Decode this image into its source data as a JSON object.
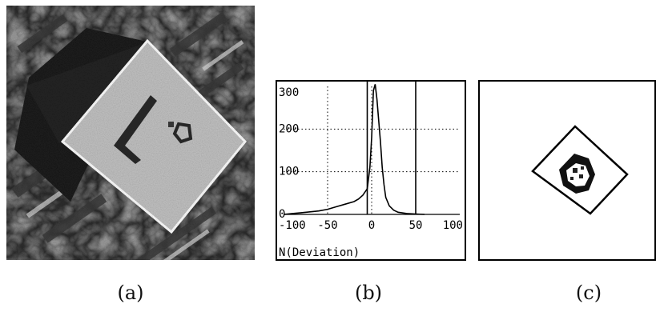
{
  "captions": {
    "a": "(a)",
    "b": "(b)",
    "c": "(c)"
  },
  "chart_data": {
    "type": "line",
    "title": "",
    "xlabel": "N(Deviation)",
    "ylabel": "",
    "xlim": [
      -100,
      100
    ],
    "ylim": [
      0,
      300
    ],
    "x_ticks": [
      "-100",
      "-50",
      "0",
      "50",
      "100"
    ],
    "y_ticks": [
      "300",
      "200",
      "100",
      "0"
    ],
    "grid": true,
    "vertical_markers": [
      -5,
      50
    ],
    "series": [
      {
        "x": [
          -100,
          -90,
          -80,
          -70,
          -60,
          -50,
          -40,
          -30,
          -20,
          -15,
          -10,
          -5,
          -2,
          0,
          2,
          4,
          6,
          8,
          10,
          12,
          14,
          16,
          20,
          25,
          30,
          40,
          50,
          60
        ],
        "y": [
          0,
          2,
          4,
          6,
          8,
          12,
          18,
          24,
          30,
          36,
          45,
          60,
          110,
          180,
          290,
          305,
          270,
          220,
          170,
          110,
          70,
          40,
          20,
          10,
          5,
          2,
          1,
          0
        ]
      }
    ]
  }
}
